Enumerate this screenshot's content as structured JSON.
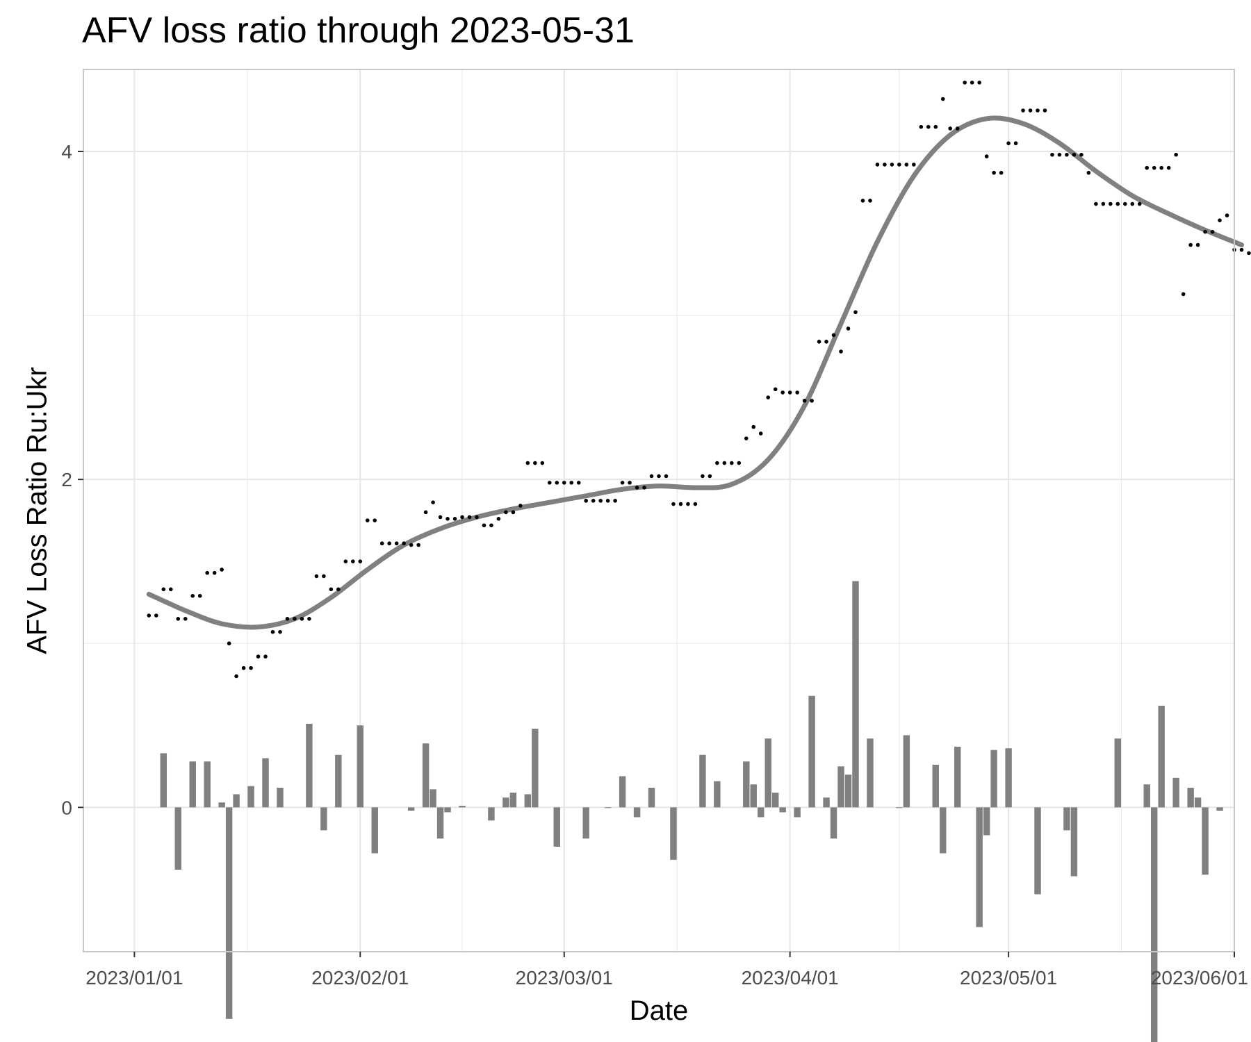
{
  "chart_data": {
    "type": "line",
    "title": "AFV loss ratio through 2023-05-31",
    "xlabel": "Date",
    "ylabel": "AFV Loss Ratio Ru:Ukr",
    "x_range": [
      "2022-12-25",
      "2023-06-01"
    ],
    "ylim": [
      -0.88,
      4.5
    ],
    "x_ticks": [
      "2023/01/01",
      "2023/02/01",
      "2023/03/01",
      "2023/04/01",
      "2023/05/01",
      "2023/06/01"
    ],
    "y_ticks": [
      0,
      2,
      4
    ],
    "grid": true,
    "colors": {
      "points": "#000000",
      "smooth_line": "#808080",
      "bars": "#808080",
      "grid": "#e6e6e6",
      "panel_border": "#c8c8c8"
    },
    "series": [
      {
        "type": "points",
        "values": [
          [
            "2023-01-03",
            1.17
          ],
          [
            "2023-01-04",
            1.17
          ],
          [
            "2023-01-05",
            1.33
          ],
          [
            "2023-01-06",
            1.33
          ],
          [
            "2023-01-07",
            1.15
          ],
          [
            "2023-01-08",
            1.15
          ],
          [
            "2023-01-09",
            1.29
          ],
          [
            "2023-01-10",
            1.29
          ],
          [
            "2023-01-11",
            1.43
          ],
          [
            "2023-01-12",
            1.43
          ],
          [
            "2023-01-13",
            1.45
          ],
          [
            "2023-01-14",
            1.0
          ],
          [
            "2023-01-15",
            0.8
          ],
          [
            "2023-01-16",
            0.85
          ],
          [
            "2023-01-17",
            0.85
          ],
          [
            "2023-01-18",
            0.92
          ],
          [
            "2023-01-19",
            0.92
          ],
          [
            "2023-01-20",
            1.07
          ],
          [
            "2023-01-21",
            1.07
          ],
          [
            "2023-01-22",
            1.15
          ],
          [
            "2023-01-23",
            1.15
          ],
          [
            "2023-01-24",
            1.15
          ],
          [
            "2023-01-25",
            1.15
          ],
          [
            "2023-01-26",
            1.41
          ],
          [
            "2023-01-27",
            1.41
          ],
          [
            "2023-01-28",
            1.33
          ],
          [
            "2023-01-29",
            1.33
          ],
          [
            "2023-01-30",
            1.5
          ],
          [
            "2023-01-31",
            1.5
          ],
          [
            "2023-02-01",
            1.5
          ],
          [
            "2023-02-02",
            1.75
          ],
          [
            "2023-02-03",
            1.75
          ],
          [
            "2023-02-04",
            1.61
          ],
          [
            "2023-02-05",
            1.61
          ],
          [
            "2023-02-06",
            1.61
          ],
          [
            "2023-02-07",
            1.61
          ],
          [
            "2023-02-08",
            1.6
          ],
          [
            "2023-02-09",
            1.6
          ],
          [
            "2023-02-10",
            1.8
          ],
          [
            "2023-02-11",
            1.86
          ],
          [
            "2023-02-12",
            1.77
          ],
          [
            "2023-02-13",
            1.76
          ],
          [
            "2023-02-14",
            1.76
          ],
          [
            "2023-02-15",
            1.77
          ],
          [
            "2023-02-16",
            1.77
          ],
          [
            "2023-02-17",
            1.77
          ],
          [
            "2023-02-18",
            1.72
          ],
          [
            "2023-02-19",
            1.72
          ],
          [
            "2023-02-20",
            1.76
          ],
          [
            "2023-02-21",
            1.8
          ],
          [
            "2023-02-22",
            1.8
          ],
          [
            "2023-02-23",
            1.84
          ],
          [
            "2023-02-24",
            2.1
          ],
          [
            "2023-02-25",
            2.1
          ],
          [
            "2023-02-26",
            2.1
          ],
          [
            "2023-02-27",
            1.98
          ],
          [
            "2023-02-28",
            1.98
          ],
          [
            "2023-03-01",
            1.98
          ],
          [
            "2023-03-02",
            1.98
          ],
          [
            "2023-03-03",
            1.98
          ],
          [
            "2023-03-04",
            1.87
          ],
          [
            "2023-03-05",
            1.87
          ],
          [
            "2023-03-06",
            1.87
          ],
          [
            "2023-03-07",
            1.87
          ],
          [
            "2023-03-08",
            1.87
          ],
          [
            "2023-03-09",
            1.98
          ],
          [
            "2023-03-10",
            1.98
          ],
          [
            "2023-03-11",
            1.95
          ],
          [
            "2023-03-12",
            1.95
          ],
          [
            "2023-03-13",
            2.02
          ],
          [
            "2023-03-14",
            2.02
          ],
          [
            "2023-03-15",
            2.02
          ],
          [
            "2023-03-16",
            1.85
          ],
          [
            "2023-03-17",
            1.85
          ],
          [
            "2023-03-18",
            1.85
          ],
          [
            "2023-03-19",
            1.85
          ],
          [
            "2023-03-20",
            2.02
          ],
          [
            "2023-03-21",
            2.02
          ],
          [
            "2023-03-22",
            2.1
          ],
          [
            "2023-03-23",
            2.1
          ],
          [
            "2023-03-24",
            2.1
          ],
          [
            "2023-03-25",
            2.1
          ],
          [
            "2023-03-26",
            2.25
          ],
          [
            "2023-03-27",
            2.32
          ],
          [
            "2023-03-28",
            2.28
          ],
          [
            "2023-03-29",
            2.5
          ],
          [
            "2023-03-30",
            2.55
          ],
          [
            "2023-03-31",
            2.53
          ],
          [
            "2023-04-01",
            2.53
          ],
          [
            "2023-04-02",
            2.53
          ],
          [
            "2023-04-03",
            2.48
          ],
          [
            "2023-04-04",
            2.48
          ],
          [
            "2023-04-05",
            2.84
          ],
          [
            "2023-04-06",
            2.84
          ],
          [
            "2023-04-07",
            2.88
          ],
          [
            "2023-04-08",
            2.78
          ],
          [
            "2023-04-09",
            2.92
          ],
          [
            "2023-04-10",
            3.02
          ],
          [
            "2023-04-11",
            3.7
          ],
          [
            "2023-04-12",
            3.7
          ],
          [
            "2023-04-13",
            3.92
          ],
          [
            "2023-04-14",
            3.92
          ],
          [
            "2023-04-15",
            3.92
          ],
          [
            "2023-04-16",
            3.92
          ],
          [
            "2023-04-17",
            3.92
          ],
          [
            "2023-04-18",
            3.92
          ],
          [
            "2023-04-19",
            4.15
          ],
          [
            "2023-04-20",
            4.15
          ],
          [
            "2023-04-21",
            4.15
          ],
          [
            "2023-04-22",
            4.32
          ],
          [
            "2023-04-23",
            4.14
          ],
          [
            "2023-04-24",
            4.14
          ],
          [
            "2023-04-25",
            4.42
          ],
          [
            "2023-04-26",
            4.42
          ],
          [
            "2023-04-27",
            4.42
          ],
          [
            "2023-04-28",
            3.97
          ],
          [
            "2023-04-29",
            3.87
          ],
          [
            "2023-04-30",
            3.87
          ],
          [
            "2023-05-01",
            4.05
          ],
          [
            "2023-05-02",
            4.05
          ],
          [
            "2023-05-03",
            4.25
          ],
          [
            "2023-05-04",
            4.25
          ],
          [
            "2023-05-05",
            4.25
          ],
          [
            "2023-05-06",
            4.25
          ],
          [
            "2023-05-07",
            3.98
          ],
          [
            "2023-05-08",
            3.98
          ],
          [
            "2023-05-09",
            3.98
          ],
          [
            "2023-05-10",
            3.98
          ],
          [
            "2023-05-11",
            3.98
          ],
          [
            "2023-05-12",
            3.87
          ],
          [
            "2023-05-13",
            3.68
          ],
          [
            "2023-05-14",
            3.68
          ],
          [
            "2023-05-15",
            3.68
          ],
          [
            "2023-05-16",
            3.68
          ],
          [
            "2023-05-17",
            3.68
          ],
          [
            "2023-05-18",
            3.68
          ],
          [
            "2023-05-19",
            3.68
          ],
          [
            "2023-05-20",
            3.9
          ],
          [
            "2023-05-21",
            3.9
          ],
          [
            "2023-05-22",
            3.9
          ],
          [
            "2023-05-23",
            3.9
          ],
          [
            "2023-05-24",
            3.98
          ],
          [
            "2023-05-25",
            3.13
          ],
          [
            "2023-05-26",
            3.43
          ],
          [
            "2023-05-27",
            3.43
          ],
          [
            "2023-05-28",
            3.51
          ],
          [
            "2023-05-29",
            3.51
          ],
          [
            "2023-05-30",
            3.58
          ],
          [
            "2023-05-31",
            3.61
          ],
          [
            "2023-06-01",
            3.4
          ],
          [
            "2023-06-02",
            3.4
          ],
          [
            "2023-06-03",
            3.38
          ]
        ]
      },
      {
        "type": "smooth_line",
        "values": [
          [
            "2023-01-03",
            1.3
          ],
          [
            "2023-01-08",
            1.2
          ],
          [
            "2023-01-13",
            1.12
          ],
          [
            "2023-01-18",
            1.1
          ],
          [
            "2023-01-23",
            1.15
          ],
          [
            "2023-01-28",
            1.28
          ],
          [
            "2023-02-02",
            1.45
          ],
          [
            "2023-02-07",
            1.6
          ],
          [
            "2023-02-12",
            1.7
          ],
          [
            "2023-02-17",
            1.77
          ],
          [
            "2023-02-22",
            1.82
          ],
          [
            "2023-02-27",
            1.86
          ],
          [
            "2023-03-04",
            1.9
          ],
          [
            "2023-03-09",
            1.94
          ],
          [
            "2023-03-14",
            1.96
          ],
          [
            "2023-03-19",
            1.95
          ],
          [
            "2023-03-24",
            1.97
          ],
          [
            "2023-03-29",
            2.12
          ],
          [
            "2023-04-03",
            2.45
          ],
          [
            "2023-04-08",
            2.95
          ],
          [
            "2023-04-13",
            3.45
          ],
          [
            "2023-04-18",
            3.85
          ],
          [
            "2023-04-23",
            4.1
          ],
          [
            "2023-04-28",
            4.2
          ],
          [
            "2023-05-03",
            4.17
          ],
          [
            "2023-05-08",
            4.05
          ],
          [
            "2023-05-13",
            3.88
          ],
          [
            "2023-05-18",
            3.73
          ],
          [
            "2023-05-23",
            3.62
          ],
          [
            "2023-05-28",
            3.52
          ],
          [
            "2023-06-02",
            3.43
          ]
        ]
      },
      {
        "type": "bar",
        "values": [
          [
            "2023-01-05",
            0.33
          ],
          [
            "2023-01-07",
            -0.38
          ],
          [
            "2023-01-09",
            0.28
          ],
          [
            "2023-01-11",
            0.28
          ],
          [
            "2023-01-13",
            0.03
          ],
          [
            "2023-01-14",
            -1.29
          ],
          [
            "2023-01-15",
            0.08
          ],
          [
            "2023-01-17",
            0.13
          ],
          [
            "2023-01-19",
            0.3
          ],
          [
            "2023-01-21",
            0.12
          ],
          [
            "2023-01-25",
            0.51
          ],
          [
            "2023-01-27",
            -0.14
          ],
          [
            "2023-01-29",
            0.32
          ],
          [
            "2023-02-01",
            0.5
          ],
          [
            "2023-02-03",
            -0.28
          ],
          [
            "2023-02-08",
            -0.02
          ],
          [
            "2023-02-10",
            0.39
          ],
          [
            "2023-02-11",
            0.11
          ],
          [
            "2023-02-12",
            -0.19
          ],
          [
            "2023-02-13",
            -0.03
          ],
          [
            "2023-02-15",
            0.01
          ],
          [
            "2023-02-19",
            -0.08
          ],
          [
            "2023-02-21",
            0.06
          ],
          [
            "2023-02-22",
            0.09
          ],
          [
            "2023-02-24",
            0.08
          ],
          [
            "2023-02-25",
            0.48
          ],
          [
            "2023-02-28",
            -0.24
          ],
          [
            "2023-03-04",
            -0.19
          ],
          [
            "2023-03-07",
            0.0
          ],
          [
            "2023-03-09",
            0.19
          ],
          [
            "2023-03-11",
            -0.06
          ],
          [
            "2023-03-13",
            0.12
          ],
          [
            "2023-03-16",
            -0.32
          ],
          [
            "2023-03-20",
            0.32
          ],
          [
            "2023-03-22",
            0.16
          ],
          [
            "2023-03-26",
            0.28
          ],
          [
            "2023-03-27",
            0.14
          ],
          [
            "2023-03-28",
            -0.06
          ],
          [
            "2023-03-29",
            0.42
          ],
          [
            "2023-03-30",
            0.09
          ],
          [
            "2023-03-31",
            -0.03
          ],
          [
            "2023-04-02",
            -0.06
          ],
          [
            "2023-04-04",
            0.68
          ],
          [
            "2023-04-06",
            0.06
          ],
          [
            "2023-04-07",
            -0.19
          ],
          [
            "2023-04-08",
            0.25
          ],
          [
            "2023-04-09",
            0.2
          ],
          [
            "2023-04-10",
            1.38
          ],
          [
            "2023-04-12",
            0.42
          ],
          [
            "2023-04-16",
            0.0
          ],
          [
            "2023-04-17",
            0.44
          ],
          [
            "2023-04-21",
            0.26
          ],
          [
            "2023-04-22",
            -0.28
          ],
          [
            "2023-04-24",
            0.37
          ],
          [
            "2023-04-27",
            -0.73
          ],
          [
            "2023-04-28",
            -0.17
          ],
          [
            "2023-04-29",
            0.35
          ],
          [
            "2023-05-01",
            0.36
          ],
          [
            "2023-05-05",
            -0.53
          ],
          [
            "2023-05-09",
            -0.14
          ],
          [
            "2023-05-10",
            -0.42
          ],
          [
            "2023-05-16",
            0.42
          ],
          [
            "2023-05-20",
            0.14
          ],
          [
            "2023-05-21",
            -1.71
          ],
          [
            "2023-05-22",
            0.62
          ],
          [
            "2023-05-24",
            0.18
          ],
          [
            "2023-05-26",
            0.12
          ],
          [
            "2023-05-27",
            0.06
          ],
          [
            "2023-05-28",
            -0.41
          ],
          [
            "2023-05-30",
            -0.02
          ]
        ]
      }
    ]
  }
}
